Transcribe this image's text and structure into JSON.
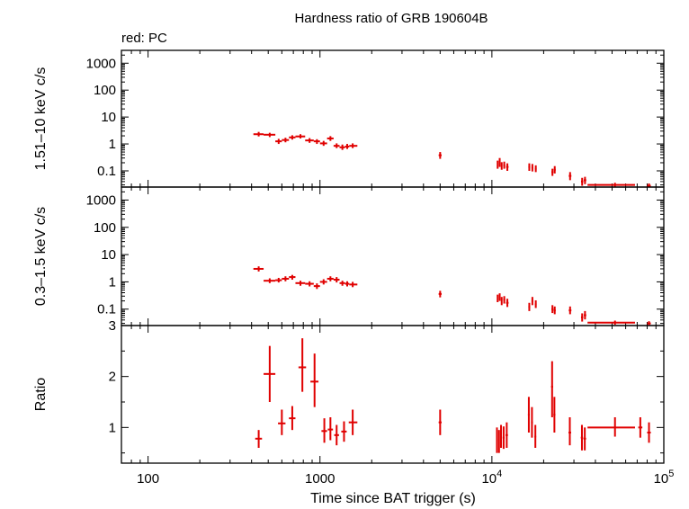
{
  "chart_data": {
    "type": "scatter",
    "title": "Hardness ratio of GRB 190604B",
    "subtitle": "red: PC",
    "xlabel": "Time since BAT trigger (s)",
    "x_scale": "log",
    "xlim": [
      70,
      100000
    ],
    "x_ticks": [
      {
        "value": 100,
        "label": "100"
      },
      {
        "value": 1000,
        "label": "1000"
      },
      {
        "value": 10000,
        "label": "10",
        "sup": "4"
      },
      {
        "value": 100000,
        "label": "10",
        "sup": "5"
      }
    ],
    "color": "#e00000",
    "panels": [
      {
        "id": "hard",
        "ylabel": "1.51–10 keV c/s",
        "y_scale": "log",
        "ylim": [
          0.025,
          3000
        ],
        "y_ticks": [
          {
            "value": 0.1,
            "label": "0.1"
          },
          {
            "value": 1,
            "label": "1"
          },
          {
            "value": 10,
            "label": "10"
          },
          {
            "value": 100,
            "label": "100"
          },
          {
            "value": 1000,
            "label": "1000"
          }
        ],
        "points": [
          {
            "x": 440,
            "xlo": 410,
            "xhi": 470,
            "y": 2.3,
            "ylo": 1.9,
            "yhi": 2.8
          },
          {
            "x": 510,
            "xlo": 470,
            "xhi": 550,
            "y": 2.2,
            "ylo": 1.8,
            "yhi": 2.6
          },
          {
            "x": 575,
            "xlo": 550,
            "xhi": 600,
            "y": 1.25,
            "ylo": 1.0,
            "yhi": 1.55
          },
          {
            "x": 630,
            "xlo": 600,
            "xhi": 660,
            "y": 1.4,
            "ylo": 1.15,
            "yhi": 1.7
          },
          {
            "x": 690,
            "xlo": 660,
            "xhi": 720,
            "y": 1.75,
            "ylo": 1.45,
            "yhi": 2.1
          },
          {
            "x": 770,
            "xlo": 720,
            "xhi": 820,
            "y": 1.9,
            "ylo": 1.6,
            "yhi": 2.3
          },
          {
            "x": 870,
            "xlo": 820,
            "xhi": 920,
            "y": 1.35,
            "ylo": 1.1,
            "yhi": 1.65
          },
          {
            "x": 960,
            "xlo": 920,
            "xhi": 1000,
            "y": 1.25,
            "ylo": 1.0,
            "yhi": 1.5
          },
          {
            "x": 1050,
            "xlo": 1000,
            "xhi": 1100,
            "y": 1.05,
            "ylo": 0.85,
            "yhi": 1.3
          },
          {
            "x": 1150,
            "xlo": 1100,
            "xhi": 1200,
            "y": 1.6,
            "ylo": 1.3,
            "yhi": 1.95
          },
          {
            "x": 1250,
            "xlo": 1200,
            "xhi": 1300,
            "y": 0.85,
            "ylo": 0.7,
            "yhi": 1.05
          },
          {
            "x": 1350,
            "xlo": 1300,
            "xhi": 1400,
            "y": 0.75,
            "ylo": 0.6,
            "yhi": 0.95
          },
          {
            "x": 1440,
            "xlo": 1400,
            "xhi": 1480,
            "y": 0.8,
            "ylo": 0.65,
            "yhi": 1.0
          },
          {
            "x": 1550,
            "xlo": 1480,
            "xhi": 1650,
            "y": 0.85,
            "ylo": 0.7,
            "yhi": 1.05
          },
          {
            "x": 5000,
            "xlo": 4900,
            "xhi": 5100,
            "y": 0.38,
            "ylo": 0.28,
            "yhi": 0.5
          },
          {
            "x": 10800,
            "xlo": 10700,
            "xhi": 10900,
            "y": 0.17,
            "ylo": 0.12,
            "yhi": 0.24
          },
          {
            "x": 11100,
            "xlo": 11000,
            "xhi": 11200,
            "y": 0.2,
            "ylo": 0.14,
            "yhi": 0.3
          },
          {
            "x": 11400,
            "xlo": 11300,
            "xhi": 11500,
            "y": 0.15,
            "ylo": 0.11,
            "yhi": 0.21
          },
          {
            "x": 11800,
            "xlo": 11650,
            "xhi": 11950,
            "y": 0.16,
            "ylo": 0.12,
            "yhi": 0.22
          },
          {
            "x": 12300,
            "xlo": 12100,
            "xhi": 12500,
            "y": 0.14,
            "ylo": 0.1,
            "yhi": 0.19
          },
          {
            "x": 16500,
            "xlo": 16300,
            "xhi": 16700,
            "y": 0.14,
            "ylo": 0.1,
            "yhi": 0.19
          },
          {
            "x": 17200,
            "xlo": 17000,
            "xhi": 17400,
            "y": 0.13,
            "ylo": 0.095,
            "yhi": 0.18
          },
          {
            "x": 18000,
            "xlo": 17800,
            "xhi": 18200,
            "y": 0.12,
            "ylo": 0.09,
            "yhi": 0.16
          },
          {
            "x": 22500,
            "xlo": 22200,
            "xhi": 22800,
            "y": 0.09,
            "ylo": 0.065,
            "yhi": 0.12
          },
          {
            "x": 23200,
            "xlo": 22900,
            "xhi": 23500,
            "y": 0.11,
            "ylo": 0.08,
            "yhi": 0.15
          },
          {
            "x": 28500,
            "xlo": 28000,
            "xhi": 29000,
            "y": 0.065,
            "ylo": 0.045,
            "yhi": 0.09
          },
          {
            "x": 33500,
            "xlo": 33000,
            "xhi": 34000,
            "y": 0.04,
            "ylo": 0.028,
            "yhi": 0.055
          },
          {
            "x": 34800,
            "xlo": 34200,
            "xhi": 35400,
            "y": 0.045,
            "ylo": 0.032,
            "yhi": 0.06
          },
          {
            "x": 52000,
            "xlo": 36000,
            "xhi": 68000,
            "y": 0.03,
            "ylo": 0.025,
            "yhi": 0.036
          },
          {
            "x": 82000,
            "xlo": 80000,
            "xhi": 84000,
            "y": 0.028,
            "ylo": 0.025,
            "yhi": 0.034
          }
        ]
      },
      {
        "id": "soft",
        "ylabel": "0.3–1.5 keV c/s",
        "y_scale": "log",
        "ylim": [
          0.025,
          3000
        ],
        "y_ticks": [
          {
            "value": 0.1,
            "label": "0.1"
          },
          {
            "value": 1,
            "label": "1"
          },
          {
            "value": 10,
            "label": "10"
          },
          {
            "value": 100,
            "label": "100"
          },
          {
            "value": 1000,
            "label": "1000"
          }
        ],
        "points": [
          {
            "x": 440,
            "xlo": 410,
            "xhi": 470,
            "y": 3.0,
            "ylo": 2.4,
            "yhi": 3.7
          },
          {
            "x": 510,
            "xlo": 470,
            "xhi": 550,
            "y": 1.1,
            "ylo": 0.9,
            "yhi": 1.35
          },
          {
            "x": 575,
            "xlo": 550,
            "xhi": 600,
            "y": 1.15,
            "ylo": 0.95,
            "yhi": 1.4
          },
          {
            "x": 630,
            "xlo": 600,
            "xhi": 660,
            "y": 1.3,
            "ylo": 1.05,
            "yhi": 1.6
          },
          {
            "x": 690,
            "xlo": 660,
            "xhi": 720,
            "y": 1.5,
            "ylo": 1.2,
            "yhi": 1.8
          },
          {
            "x": 770,
            "xlo": 720,
            "xhi": 820,
            "y": 0.9,
            "ylo": 0.72,
            "yhi": 1.1
          },
          {
            "x": 870,
            "xlo": 820,
            "xhi": 920,
            "y": 0.85,
            "ylo": 0.68,
            "yhi": 1.05
          },
          {
            "x": 960,
            "xlo": 920,
            "xhi": 1000,
            "y": 0.7,
            "ylo": 0.55,
            "yhi": 0.88
          },
          {
            "x": 1050,
            "xlo": 1000,
            "xhi": 1100,
            "y": 1.0,
            "ylo": 0.8,
            "yhi": 1.25
          },
          {
            "x": 1150,
            "xlo": 1100,
            "xhi": 1200,
            "y": 1.3,
            "ylo": 1.05,
            "yhi": 1.6
          },
          {
            "x": 1250,
            "xlo": 1200,
            "xhi": 1300,
            "y": 1.2,
            "ylo": 0.95,
            "yhi": 1.5
          },
          {
            "x": 1350,
            "xlo": 1300,
            "xhi": 1400,
            "y": 0.9,
            "ylo": 0.72,
            "yhi": 1.1
          },
          {
            "x": 1440,
            "xlo": 1400,
            "xhi": 1480,
            "y": 0.85,
            "ylo": 0.68,
            "yhi": 1.05
          },
          {
            "x": 1550,
            "xlo": 1480,
            "xhi": 1650,
            "y": 0.8,
            "ylo": 0.64,
            "yhi": 1.0
          },
          {
            "x": 5000,
            "xlo": 4900,
            "xhi": 5100,
            "y": 0.36,
            "ylo": 0.27,
            "yhi": 0.47
          },
          {
            "x": 10800,
            "xlo": 10700,
            "xhi": 10900,
            "y": 0.25,
            "ylo": 0.18,
            "yhi": 0.34
          },
          {
            "x": 11100,
            "xlo": 11000,
            "xhi": 11200,
            "y": 0.28,
            "ylo": 0.2,
            "yhi": 0.38
          },
          {
            "x": 11400,
            "xlo": 11300,
            "xhi": 11500,
            "y": 0.2,
            "ylo": 0.14,
            "yhi": 0.28
          },
          {
            "x": 11800,
            "xlo": 11650,
            "xhi": 11950,
            "y": 0.22,
            "ylo": 0.16,
            "yhi": 0.3
          },
          {
            "x": 12300,
            "xlo": 12100,
            "xhi": 12500,
            "y": 0.17,
            "ylo": 0.12,
            "yhi": 0.24
          },
          {
            "x": 16500,
            "xlo": 16300,
            "xhi": 16700,
            "y": 0.12,
            "ylo": 0.085,
            "yhi": 0.17
          },
          {
            "x": 17200,
            "xlo": 17000,
            "xhi": 17400,
            "y": 0.2,
            "ylo": 0.14,
            "yhi": 0.28
          },
          {
            "x": 18000,
            "xlo": 17800,
            "xhi": 18200,
            "y": 0.15,
            "ylo": 0.11,
            "yhi": 0.21
          },
          {
            "x": 22500,
            "xlo": 22200,
            "xhi": 22800,
            "y": 0.1,
            "ylo": 0.072,
            "yhi": 0.14
          },
          {
            "x": 23200,
            "xlo": 22900,
            "xhi": 23500,
            "y": 0.09,
            "ylo": 0.065,
            "yhi": 0.125
          },
          {
            "x": 28500,
            "xlo": 28000,
            "xhi": 29000,
            "y": 0.09,
            "ylo": 0.065,
            "yhi": 0.125
          },
          {
            "x": 33500,
            "xlo": 33000,
            "xhi": 34000,
            "y": 0.05,
            "ylo": 0.035,
            "yhi": 0.07
          },
          {
            "x": 34800,
            "xlo": 34200,
            "xhi": 35400,
            "y": 0.06,
            "ylo": 0.042,
            "yhi": 0.085
          },
          {
            "x": 52000,
            "xlo": 36000,
            "xhi": 68000,
            "y": 0.032,
            "ylo": 0.027,
            "yhi": 0.038
          },
          {
            "x": 82000,
            "xlo": 80000,
            "xhi": 84000,
            "y": 0.03,
            "ylo": 0.026,
            "yhi": 0.036
          }
        ]
      },
      {
        "id": "ratio",
        "ylabel": "Ratio",
        "y_scale": "linear",
        "ylim": [
          0.3,
          3.0
        ],
        "y_ticks": [
          {
            "value": 1,
            "label": "1"
          },
          {
            "value": 2,
            "label": "2"
          },
          {
            "value": 3,
            "label": "3"
          }
        ],
        "points": [
          {
            "x": 440,
            "xlo": 420,
            "xhi": 460,
            "y": 0.78,
            "ylo": 0.6,
            "yhi": 0.95
          },
          {
            "x": 510,
            "xlo": 470,
            "xhi": 550,
            "y": 2.05,
            "ylo": 1.5,
            "yhi": 2.6
          },
          {
            "x": 600,
            "xlo": 570,
            "xhi": 630,
            "y": 1.08,
            "ylo": 0.85,
            "yhi": 1.35
          },
          {
            "x": 690,
            "xlo": 660,
            "xhi": 720,
            "y": 1.18,
            "ylo": 0.95,
            "yhi": 1.42
          },
          {
            "x": 790,
            "xlo": 750,
            "xhi": 830,
            "y": 2.18,
            "ylo": 1.7,
            "yhi": 2.75
          },
          {
            "x": 930,
            "xlo": 880,
            "xhi": 980,
            "y": 1.9,
            "ylo": 1.4,
            "yhi": 2.45
          },
          {
            "x": 1060,
            "xlo": 1020,
            "xhi": 1100,
            "y": 0.93,
            "ylo": 0.7,
            "yhi": 1.18
          },
          {
            "x": 1150,
            "xlo": 1110,
            "xhi": 1190,
            "y": 0.96,
            "ylo": 0.75,
            "yhi": 1.2
          },
          {
            "x": 1250,
            "xlo": 1210,
            "xhi": 1290,
            "y": 0.85,
            "ylo": 0.65,
            "yhi": 1.05
          },
          {
            "x": 1380,
            "xlo": 1330,
            "xhi": 1430,
            "y": 0.92,
            "ylo": 0.72,
            "yhi": 1.12
          },
          {
            "x": 1550,
            "xlo": 1470,
            "xhi": 1650,
            "y": 1.1,
            "ylo": 0.85,
            "yhi": 1.35
          },
          {
            "x": 5000,
            "xlo": 4900,
            "xhi": 5100,
            "y": 1.1,
            "ylo": 0.85,
            "yhi": 1.35
          },
          {
            "x": 10700,
            "xlo": 10600,
            "xhi": 10800,
            "y": 0.75,
            "ylo": 0.5,
            "yhi": 1.0
          },
          {
            "x": 11000,
            "xlo": 10900,
            "xhi": 11100,
            "y": 0.7,
            "ylo": 0.5,
            "yhi": 0.95
          },
          {
            "x": 11300,
            "xlo": 11200,
            "xhi": 11400,
            "y": 0.82,
            "ylo": 0.6,
            "yhi": 1.05
          },
          {
            "x": 11700,
            "xlo": 11550,
            "xhi": 11850,
            "y": 0.8,
            "ylo": 0.58,
            "yhi": 1.02
          },
          {
            "x": 12200,
            "xlo": 12000,
            "xhi": 12400,
            "y": 0.85,
            "ylo": 0.6,
            "yhi": 1.1
          },
          {
            "x": 16400,
            "xlo": 16200,
            "xhi": 16600,
            "y": 1.25,
            "ylo": 0.9,
            "yhi": 1.6
          },
          {
            "x": 17100,
            "xlo": 16900,
            "xhi": 17300,
            "y": 1.1,
            "ylo": 0.8,
            "yhi": 1.4
          },
          {
            "x": 17900,
            "xlo": 17700,
            "xhi": 18100,
            "y": 0.82,
            "ylo": 0.6,
            "yhi": 1.05
          },
          {
            "x": 22400,
            "xlo": 22100,
            "xhi": 22700,
            "y": 1.8,
            "ylo": 1.2,
            "yhi": 2.3
          },
          {
            "x": 23100,
            "xlo": 22800,
            "xhi": 23400,
            "y": 1.25,
            "ylo": 0.9,
            "yhi": 1.6
          },
          {
            "x": 28400,
            "xlo": 27900,
            "xhi": 28900,
            "y": 0.9,
            "ylo": 0.65,
            "yhi": 1.2
          },
          {
            "x": 33400,
            "xlo": 32900,
            "xhi": 33900,
            "y": 0.8,
            "ylo": 0.55,
            "yhi": 1.05
          },
          {
            "x": 34700,
            "xlo": 34100,
            "xhi": 35300,
            "y": 0.78,
            "ylo": 0.55,
            "yhi": 1.0
          },
          {
            "x": 52000,
            "xlo": 36000,
            "xhi": 68000,
            "y": 1.0,
            "ylo": 0.82,
            "yhi": 1.2
          },
          {
            "x": 73000,
            "xlo": 71000,
            "xhi": 75000,
            "y": 1.0,
            "ylo": 0.8,
            "yhi": 1.2
          },
          {
            "x": 82000,
            "xlo": 80000,
            "xhi": 84000,
            "y": 0.9,
            "ylo": 0.7,
            "yhi": 1.1
          }
        ]
      }
    ]
  }
}
